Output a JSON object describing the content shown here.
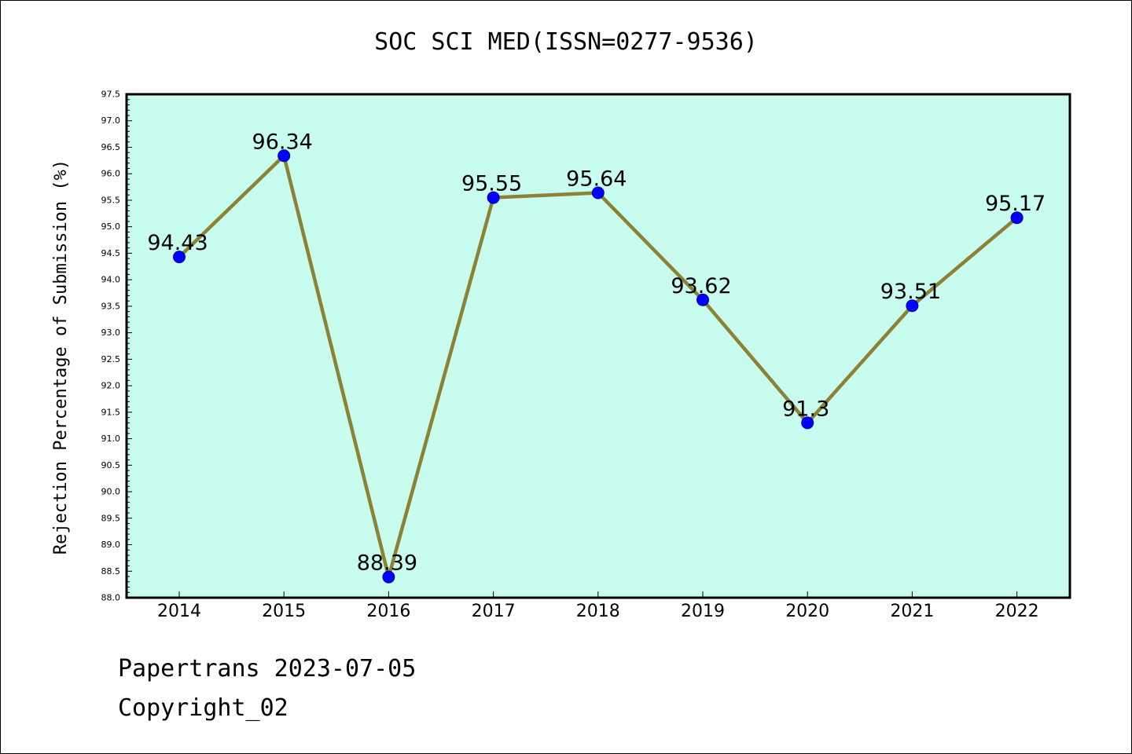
{
  "chart_data": {
    "type": "line",
    "title": "SOC SCI MED(ISSN=0277-9536)",
    "xlabel": "",
    "ylabel": "Rejection Percentage of Submission (%)",
    "categories": [
      "2014",
      "2015",
      "2016",
      "2017",
      "2018",
      "2019",
      "2020",
      "2021",
      "2022"
    ],
    "series": [
      {
        "values": [
          94.43,
          96.34,
          88.39,
          95.55,
          95.64,
          93.62,
          91.3,
          93.51,
          95.17
        ],
        "labels": [
          "94.43",
          "96.34",
          "88.39",
          "95.55",
          "95.64",
          "93.62",
          "91.3",
          "93.51",
          "95.17"
        ]
      }
    ],
    "ylim": [
      88.0,
      97.5
    ],
    "yticks": [
      "88.0",
      "88.5",
      "89.0",
      "89.5",
      "90.0",
      "90.5",
      "91.0",
      "91.5",
      "92.0",
      "92.5",
      "93.0",
      "93.5",
      "94.0",
      "94.5",
      "95.0",
      "95.5",
      "96.0",
      "96.5",
      "97.0",
      "97.5"
    ],
    "grid": false,
    "colors": {
      "plot_background": "#c8fcee",
      "line": "#8b8236",
      "marker": "#0000ff"
    }
  },
  "footer": {
    "date_line": "Papertrans 2023-07-05",
    "copyright": "Copyright_02"
  }
}
